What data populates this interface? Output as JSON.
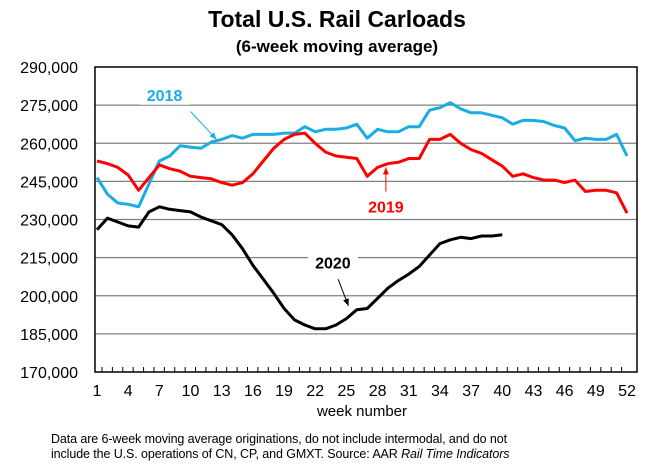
{
  "chart_data": {
    "type": "line",
    "title": "Total U.S. Rail Carloads",
    "subtitle": "(6-week moving average)",
    "xlabel": "week number",
    "ylabel": "",
    "xlim": [
      1,
      52
    ],
    "ylim": [
      170000,
      290000
    ],
    "grid": true,
    "x_ticks": [
      1,
      4,
      7,
      10,
      13,
      16,
      19,
      22,
      25,
      28,
      31,
      34,
      37,
      40,
      43,
      46,
      49,
      52
    ],
    "y_ticks": [
      170000,
      185000,
      200000,
      215000,
      230000,
      245000,
      260000,
      275000,
      290000
    ],
    "y_tick_labels": [
      "170,000",
      "185,000",
      "200,000",
      "215,000",
      "230,000",
      "245,000",
      "260,000",
      "275,000",
      "290,000"
    ],
    "series": [
      {
        "name": "2018",
        "color": "#1AACE5",
        "label_week": 7.5,
        "label_value": 277500,
        "arrow_from": [
          10,
          272500
        ],
        "arrow_to": [
          12.5,
          261500
        ],
        "values": [
          246500,
          240000,
          236500,
          236000,
          235000,
          244000,
          253000,
          255000,
          259000,
          258500,
          258000,
          260500,
          261500,
          263000,
          262000,
          263500,
          263500,
          263500,
          264000,
          264000,
          266500,
          264500,
          265500,
          265500,
          266000,
          267500,
          262000,
          265500,
          264500,
          264500,
          266500,
          266500,
          273000,
          274000,
          276000,
          273500,
          272000,
          272000,
          271000,
          270000,
          267500,
          269000,
          269000,
          268500,
          267000,
          266000,
          261000,
          262000,
          261500,
          261500,
          263500,
          255000
        ]
      },
      {
        "name": "2019",
        "color": "#FF0000",
        "label_week": 28.8,
        "label_value": 233500,
        "arrow_from": [
          28.8,
          241000
        ],
        "arrow_to": [
          28.8,
          250500
        ],
        "values": [
          253000,
          252000,
          250500,
          247500,
          241500,
          246500,
          251500,
          250000,
          249000,
          247000,
          246500,
          246000,
          244500,
          243500,
          244500,
          248000,
          253000,
          258000,
          261500,
          263500,
          264000,
          260000,
          256500,
          255000,
          254500,
          254000,
          247000,
          250500,
          252000,
          252500,
          254000,
          254000,
          261500,
          261500,
          263500,
          260000,
          257500,
          256000,
          253500,
          251000,
          247000,
          248000,
          246500,
          245500,
          245500,
          244500,
          245500,
          241000,
          241500,
          241500,
          240500,
          232500
        ]
      },
      {
        "name": "2020",
        "color": "#000000",
        "label_week": 23.7,
        "label_value": 211500,
        "arrow_from": [
          24.2,
          206500
        ],
        "arrow_to": [
          25.2,
          196000
        ],
        "values": [
          226000,
          230500,
          229000,
          227500,
          227000,
          233000,
          235000,
          234000,
          233500,
          233000,
          231000,
          229500,
          228000,
          224000,
          218500,
          212000,
          206500,
          201000,
          195000,
          190500,
          188500,
          187000,
          187000,
          188500,
          191000,
          194500,
          195000,
          199000,
          203000,
          206000,
          208500,
          211500,
          216000,
          220500,
          222000,
          223000,
          222500,
          223500,
          223500,
          224000
        ]
      }
    ]
  },
  "footnote": {
    "line1": "Data are 6-week moving average originations, do not include intermodal, and do not",
    "line2_prefix": "include the U.S. operations of CN, CP, and GMXT.   Source: AAR ",
    "line2_source": "Rail Time Indicators"
  }
}
